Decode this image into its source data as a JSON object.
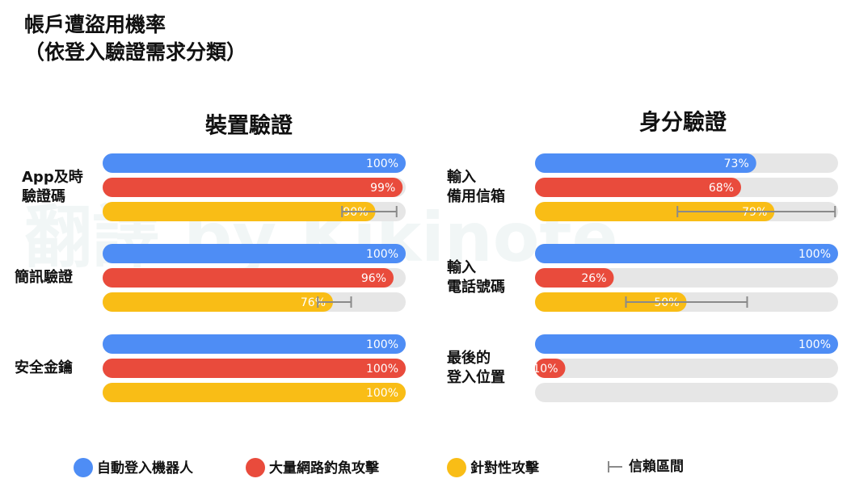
{
  "title": "帳戶遭盜用機率\n（依登入驗證需求分類）",
  "watermark": "翻譯 by Kikinote",
  "error_label": "信賴區間",
  "chart_data": [
    {
      "type": "bar",
      "orientation": "horizontal",
      "title": "裝置驗證",
      "categories": [
        "App及時\n驗證碼",
        "簡訊驗證",
        "安全金鑰"
      ],
      "xlim": [
        0,
        100
      ],
      "series": [
        {
          "name": "自動登入機器人",
          "color": "#4e8df5",
          "values": [
            100,
            100,
            100
          ],
          "value_labels": [
            "100%",
            "100%",
            "100%"
          ]
        },
        {
          "name": "大量網路釣魚攻擊",
          "color": "#e94b3c",
          "values": [
            99,
            96,
            100
          ],
          "value_labels": [
            "99%",
            "96%",
            "100%"
          ]
        },
        {
          "name": "針對性攻擊",
          "color": "#f9bd16",
          "values": [
            90,
            76,
            100
          ],
          "value_labels": [
            "90%",
            "76%",
            "100%"
          ],
          "error_low": [
            79,
            71,
            null
          ],
          "error_high": [
            97,
            82,
            null
          ]
        }
      ]
    },
    {
      "type": "bar",
      "orientation": "horizontal",
      "title": "身分驗證",
      "categories": [
        "輸入\n備用信箱",
        "輸入\n電話號碼",
        "最後的\n登入位置"
      ],
      "xlim": [
        0,
        100
      ],
      "series": [
        {
          "name": "自動登入機器人",
          "color": "#4e8df5",
          "values": [
            73,
            100,
            100
          ],
          "value_labels": [
            "73%",
            "100%",
            "100%"
          ]
        },
        {
          "name": "大量網路釣魚攻擊",
          "color": "#e94b3c",
          "values": [
            68,
            26,
            10
          ],
          "value_labels": [
            "68%",
            "26%",
            "10%"
          ]
        },
        {
          "name": "針對性攻擊",
          "color": "#f9bd16",
          "values": [
            79,
            50,
            null
          ],
          "value_labels": [
            "79%",
            "50%",
            null
          ],
          "error_low": [
            47,
            30,
            null
          ],
          "error_high": [
            99,
            70,
            null
          ]
        }
      ]
    }
  ]
}
